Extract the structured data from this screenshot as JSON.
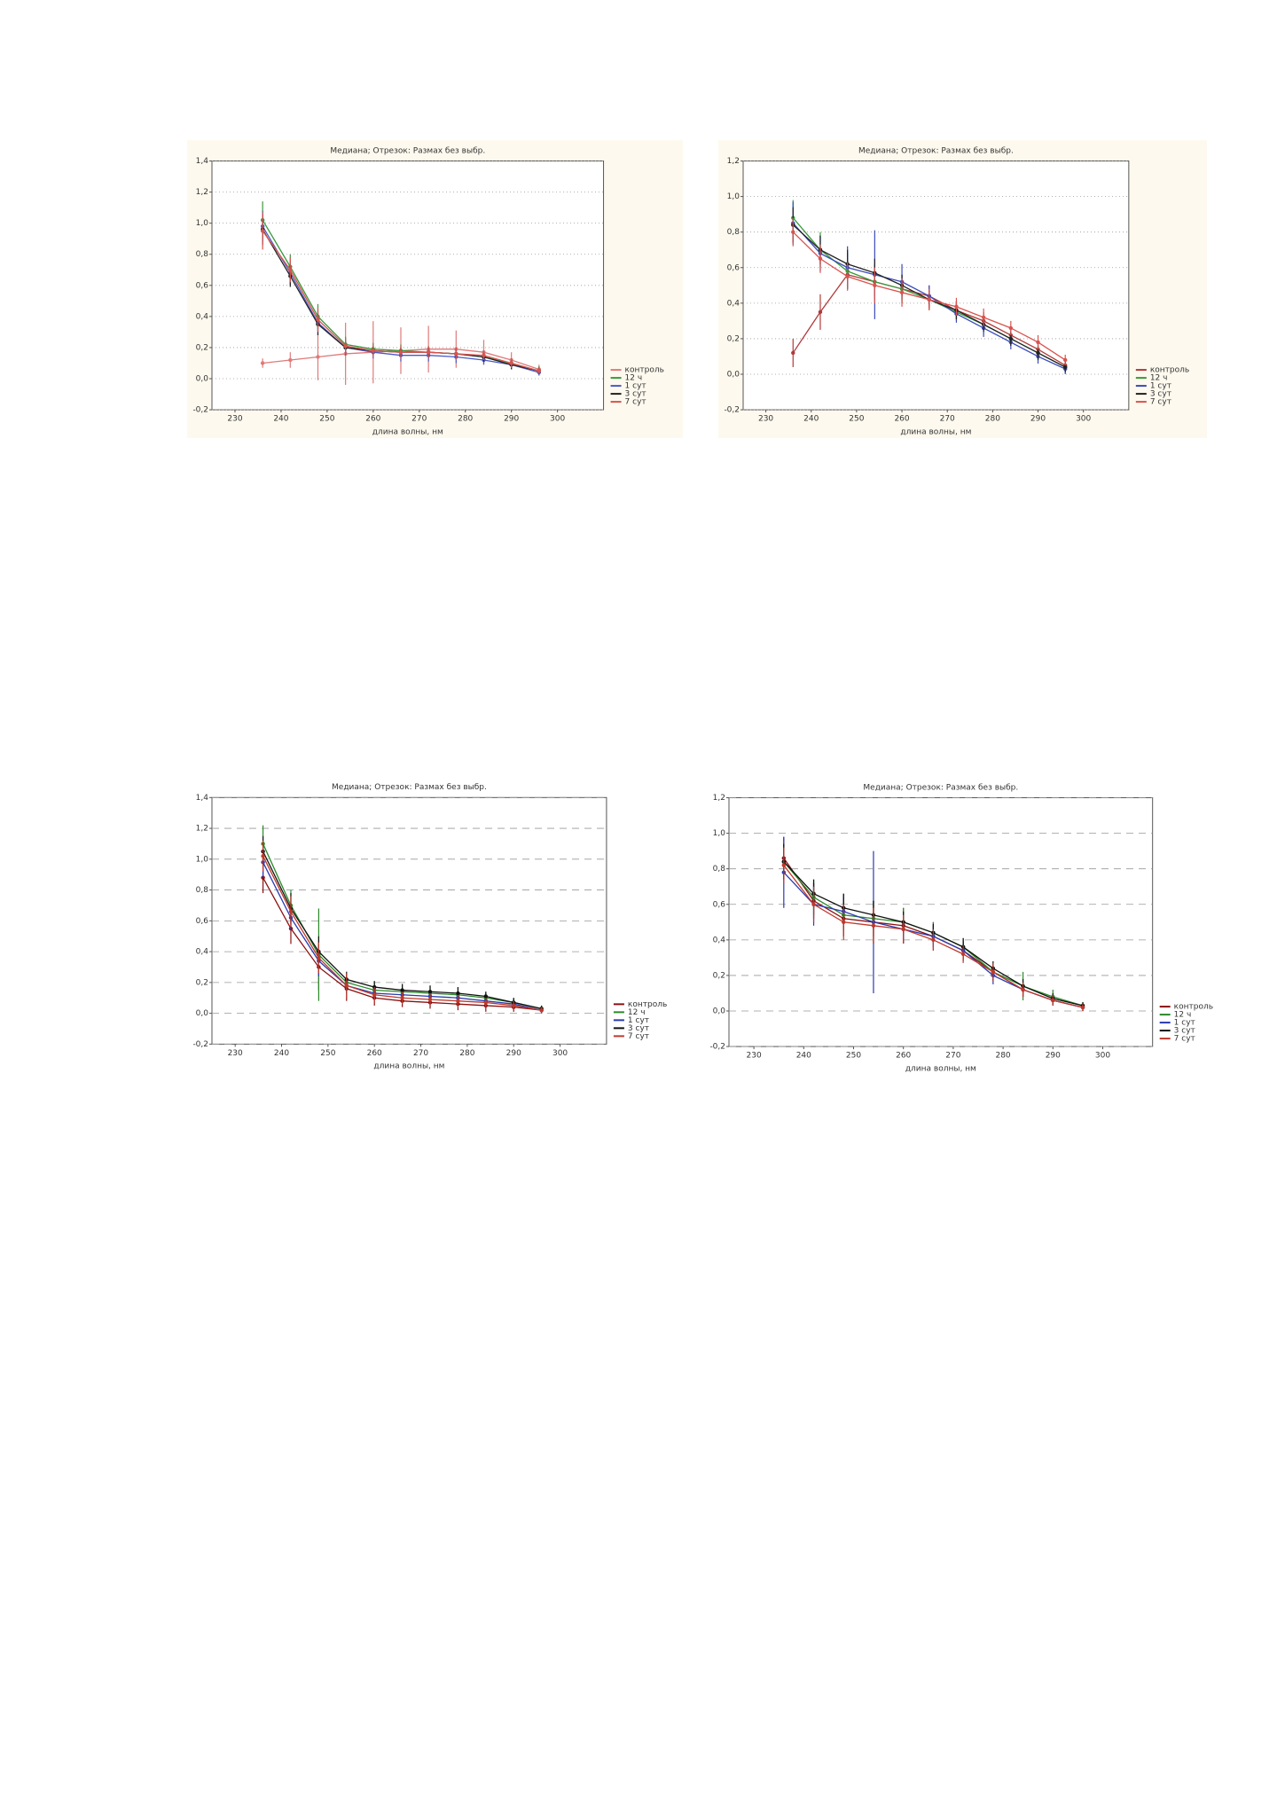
{
  "chart_data": [
    {
      "type": "line",
      "title": "Медиана; Отрезок: Размах без выбр.",
      "x_label": "длина волны, нм",
      "x": [
        236,
        242,
        248,
        254,
        260,
        266,
        272,
        278,
        284,
        290,
        296
      ],
      "xlim": [
        225,
        310
      ],
      "xticks": [
        230,
        240,
        250,
        260,
        270,
        280,
        290,
        300
      ],
      "ylim": [
        -0.2,
        1.4
      ],
      "yticks": [
        {
          "value": -0.2,
          "label": "-0,2"
        },
        {
          "value": 0,
          "label": "0,0"
        },
        {
          "value": 0.2,
          "label": "0,2"
        },
        {
          "value": 0.4,
          "label": "0,4"
        },
        {
          "value": 0.6,
          "label": "0,6"
        },
        {
          "value": 0.8,
          "label": "0,8"
        },
        {
          "value": 1,
          "label": "1,0"
        },
        {
          "value": 1.2,
          "label": "1,2"
        },
        {
          "value": 1.4,
          "label": "1,4"
        }
      ],
      "grid": true,
      "grid_style": "dotted",
      "legend": "bottom-right",
      "background": "#fdf9ee",
      "series": [
        {
          "name": "контроль",
          "color": "#e07a7a",
          "values": [
            0.1,
            0.12,
            0.14,
            0.16,
            0.17,
            0.18,
            0.19,
            0.19,
            0.17,
            0.12,
            0.06
          ],
          "errors": [
            0.03,
            0.05,
            0.15,
            0.2,
            0.2,
            0.15,
            0.15,
            0.12,
            0.08,
            0.05,
            0.03
          ]
        },
        {
          "name": "12 ч",
          "color": "#3a9a3a",
          "values": [
            1.02,
            0.72,
            0.4,
            0.22,
            0.19,
            0.18,
            0.17,
            0.16,
            0.14,
            0.1,
            0.05
          ],
          "errors": [
            0.12,
            0.08,
            0.08,
            0.05,
            0.04,
            0.04,
            0.04,
            0.04,
            0.04,
            0.03,
            0.03
          ]
        },
        {
          "name": "1 сут",
          "color": "#4a5ac8",
          "values": [
            0.98,
            0.68,
            0.36,
            0.2,
            0.17,
            0.15,
            0.15,
            0.14,
            0.12,
            0.09,
            0.04
          ],
          "errors": [
            0.1,
            0.08,
            0.08,
            0.05,
            0.04,
            0.04,
            0.04,
            0.04,
            0.03,
            0.03,
            0.02
          ]
        },
        {
          "name": "3 сут",
          "color": "#222222",
          "values": [
            0.96,
            0.66,
            0.35,
            0.2,
            0.18,
            0.17,
            0.17,
            0.16,
            0.14,
            0.09,
            0.05
          ],
          "errors": [
            0.1,
            0.07,
            0.07,
            0.04,
            0.03,
            0.03,
            0.03,
            0.03,
            0.03,
            0.03,
            0.02
          ]
        },
        {
          "name": "7 сут",
          "color": "#d9534f",
          "values": [
            0.95,
            0.7,
            0.38,
            0.21,
            0.18,
            0.17,
            0.17,
            0.16,
            0.15,
            0.1,
            0.05
          ],
          "errors": [
            0.12,
            0.08,
            0.08,
            0.05,
            0.04,
            0.04,
            0.04,
            0.04,
            0.03,
            0.03,
            0.02
          ]
        }
      ]
    },
    {
      "type": "line",
      "title": "Медиана; Отрезок: Размах без выбр.",
      "x_label": "длина волны, нм",
      "x": [
        236,
        242,
        248,
        254,
        260,
        266,
        272,
        278,
        284,
        290,
        296
      ],
      "xlim": [
        225,
        310
      ],
      "xticks": [
        230,
        240,
        250,
        260,
        270,
        280,
        290,
        300
      ],
      "ylim": [
        -0.2,
        1.2
      ],
      "yticks": [
        {
          "value": -0.2,
          "label": "-0,2"
        },
        {
          "value": 0,
          "label": "0,0"
        },
        {
          "value": 0.2,
          "label": "0,2"
        },
        {
          "value": 0.4,
          "label": "0,4"
        },
        {
          "value": 0.6,
          "label": "0,6"
        },
        {
          "value": 0.8,
          "label": "0,8"
        },
        {
          "value": 1,
          "label": "1,0"
        },
        {
          "value": 1.2,
          "label": "1,2"
        }
      ],
      "grid": true,
      "grid_style": "dotted",
      "legend": "bottom-right",
      "background": "#fdf9ee",
      "series": [
        {
          "name": "контроль",
          "color": "#b03a3a",
          "values": [
            0.12,
            0.35,
            0.56,
            0.52,
            0.48,
            0.44,
            0.36,
            0.3,
            0.22,
            0.14,
            0.05
          ],
          "errors": [
            0.08,
            0.1,
            0.08,
            0.08,
            0.08,
            0.06,
            0.05,
            0.05,
            0.05,
            0.04,
            0.03
          ]
        },
        {
          "name": "12 ч",
          "color": "#3a9a3a",
          "values": [
            0.88,
            0.7,
            0.58,
            0.52,
            0.48,
            0.42,
            0.35,
            0.28,
            0.2,
            0.12,
            0.04
          ],
          "errors": [
            0.1,
            0.1,
            0.1,
            0.1,
            0.08,
            0.06,
            0.05,
            0.05,
            0.04,
            0.04,
            0.03
          ]
        },
        {
          "name": "1 сут",
          "color": "#3a4ab8",
          "values": [
            0.85,
            0.68,
            0.6,
            0.56,
            0.52,
            0.44,
            0.34,
            0.26,
            0.18,
            0.1,
            0.03
          ],
          "errors": [
            0.12,
            0.1,
            0.12,
            0.25,
            0.1,
            0.06,
            0.05,
            0.05,
            0.04,
            0.04,
            0.03
          ]
        },
        {
          "name": "3 сут",
          "color": "#222222",
          "values": [
            0.84,
            0.7,
            0.62,
            0.57,
            0.5,
            0.42,
            0.36,
            0.28,
            0.2,
            0.12,
            0.04
          ],
          "errors": [
            0.1,
            0.08,
            0.08,
            0.08,
            0.06,
            0.05,
            0.05,
            0.04,
            0.04,
            0.04,
            0.03
          ]
        },
        {
          "name": "7 сут",
          "color": "#d9534f",
          "values": [
            0.8,
            0.65,
            0.55,
            0.5,
            0.46,
            0.42,
            0.38,
            0.32,
            0.26,
            0.18,
            0.08
          ],
          "errors": [
            0.08,
            0.08,
            0.08,
            0.1,
            0.08,
            0.06,
            0.05,
            0.05,
            0.04,
            0.04,
            0.03
          ]
        }
      ]
    },
    {
      "type": "line",
      "title": "Медиана; Отрезок: Размах без выбр.",
      "x_label": "длина волны, нм",
      "x": [
        236,
        242,
        248,
        254,
        260,
        266,
        272,
        278,
        284,
        290,
        296
      ],
      "xlim": [
        225,
        310
      ],
      "xticks": [
        230,
        240,
        250,
        260,
        270,
        280,
        290,
        300
      ],
      "ylim": [
        -0.2,
        1.4
      ],
      "yticks": [
        {
          "value": -0.2,
          "label": "-0,2"
        },
        {
          "value": 0,
          "label": "0,0"
        },
        {
          "value": 0.2,
          "label": "0,2"
        },
        {
          "value": 0.4,
          "label": "0,4"
        },
        {
          "value": 0.6,
          "label": "0,6"
        },
        {
          "value": 0.8,
          "label": "0,8"
        },
        {
          "value": 1,
          "label": "1,0"
        },
        {
          "value": 1.2,
          "label": "1,2"
        },
        {
          "value": 1.4,
          "label": "1,4"
        }
      ],
      "grid": true,
      "grid_style": "dashed",
      "legend": "bottom-right",
      "background": "#ffffff",
      "series": [
        {
          "name": "контроль",
          "color": "#8b1010",
          "values": [
            0.88,
            0.55,
            0.3,
            0.16,
            0.1,
            0.08,
            0.07,
            0.06,
            0.05,
            0.04,
            0.02
          ],
          "errors": [
            0.1,
            0.1,
            0.15,
            0.08,
            0.05,
            0.04,
            0.04,
            0.04,
            0.04,
            0.03,
            0.02
          ]
        },
        {
          "name": "12 ч",
          "color": "#2a8a2a",
          "values": [
            1.1,
            0.7,
            0.38,
            0.2,
            0.15,
            0.14,
            0.13,
            0.12,
            0.1,
            0.07,
            0.03
          ],
          "errors": [
            0.12,
            0.1,
            0.3,
            0.06,
            0.05,
            0.05,
            0.05,
            0.05,
            0.04,
            0.03,
            0.02
          ]
        },
        {
          "name": "1 сут",
          "color": "#2a3ab0",
          "values": [
            0.98,
            0.62,
            0.34,
            0.18,
            0.13,
            0.12,
            0.11,
            0.1,
            0.08,
            0.06,
            0.02
          ],
          "errors": [
            0.1,
            0.08,
            0.1,
            0.05,
            0.04,
            0.04,
            0.04,
            0.04,
            0.03,
            0.03,
            0.02
          ]
        },
        {
          "name": "3 сут",
          "color": "#111111",
          "values": [
            1.05,
            0.68,
            0.4,
            0.22,
            0.17,
            0.15,
            0.14,
            0.13,
            0.11,
            0.07,
            0.03
          ],
          "errors": [
            0.1,
            0.1,
            0.1,
            0.05,
            0.04,
            0.04,
            0.04,
            0.04,
            0.03,
            0.03,
            0.02
          ]
        },
        {
          "name": "7 сут",
          "color": "#c0392b",
          "values": [
            1.02,
            0.66,
            0.36,
            0.18,
            0.12,
            0.1,
            0.09,
            0.08,
            0.07,
            0.05,
            0.02
          ],
          "errors": [
            0.1,
            0.1,
            0.1,
            0.08,
            0.05,
            0.04,
            0.04,
            0.04,
            0.03,
            0.03,
            0.02
          ]
        }
      ]
    },
    {
      "type": "line",
      "title": "Медиана; Отрезок: Размах без выбр.",
      "x_label": "длина волны, нм",
      "x": [
        236,
        242,
        248,
        254,
        260,
        266,
        272,
        278,
        284,
        290,
        296
      ],
      "xlim": [
        225,
        310
      ],
      "xticks": [
        230,
        240,
        250,
        260,
        270,
        280,
        290,
        300
      ],
      "ylim": [
        -0.2,
        1.2
      ],
      "yticks": [
        {
          "value": -0.2,
          "label": "-0,2"
        },
        {
          "value": 0,
          "label": "0,0"
        },
        {
          "value": 0.2,
          "label": "0,2"
        },
        {
          "value": 0.4,
          "label": "0,4"
        },
        {
          "value": 0.6,
          "label": "0,6"
        },
        {
          "value": 0.8,
          "label": "0,8"
        },
        {
          "value": 1,
          "label": "1,0"
        },
        {
          "value": 1.2,
          "label": "1,2"
        }
      ],
      "grid": true,
      "grid_style": "dashed",
      "legend": "bottom-right",
      "background": "#ffffff",
      "series": [
        {
          "name": "контроль",
          "color": "#8b1010",
          "values": [
            0.86,
            0.62,
            0.52,
            0.5,
            0.48,
            0.42,
            0.34,
            0.22,
            0.12,
            0.06,
            0.02
          ],
          "errors": [
            0.12,
            0.1,
            0.1,
            0.12,
            0.1,
            0.08,
            0.06,
            0.05,
            0.04,
            0.03,
            0.02
          ]
        },
        {
          "name": "12 ч",
          "color": "#2a8a2a",
          "values": [
            0.84,
            0.64,
            0.54,
            0.52,
            0.5,
            0.44,
            0.36,
            0.22,
            0.14,
            0.08,
            0.03
          ],
          "errors": [
            0.1,
            0.1,
            0.1,
            0.1,
            0.08,
            0.06,
            0.05,
            0.05,
            0.08,
            0.04,
            0.02
          ]
        },
        {
          "name": "1 сут",
          "color": "#2a3ab0",
          "values": [
            0.78,
            0.6,
            0.56,
            0.5,
            0.46,
            0.42,
            0.34,
            0.2,
            0.12,
            0.06,
            0.02
          ],
          "errors": [
            0.2,
            0.12,
            0.1,
            0.4,
            0.08,
            0.06,
            0.05,
            0.05,
            0.04,
            0.03,
            0.02
          ]
        },
        {
          "name": "3 сут",
          "color": "#111111",
          "values": [
            0.84,
            0.66,
            0.58,
            0.54,
            0.5,
            0.44,
            0.36,
            0.24,
            0.14,
            0.07,
            0.03
          ],
          "errors": [
            0.1,
            0.08,
            0.08,
            0.08,
            0.06,
            0.05,
            0.05,
            0.04,
            0.04,
            0.03,
            0.02
          ]
        },
        {
          "name": "7 сут",
          "color": "#c0392b",
          "values": [
            0.82,
            0.6,
            0.5,
            0.48,
            0.46,
            0.4,
            0.32,
            0.22,
            0.12,
            0.06,
            0.02
          ],
          "errors": [
            0.1,
            0.1,
            0.1,
            0.1,
            0.08,
            0.06,
            0.05,
            0.05,
            0.04,
            0.03,
            0.02
          ]
        }
      ]
    }
  ]
}
